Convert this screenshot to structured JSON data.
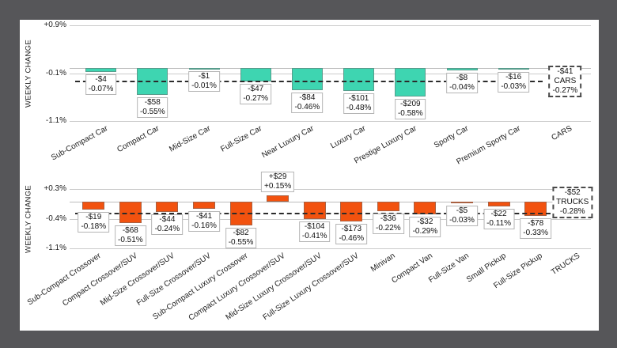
{
  "colors": {
    "frame_bg": "#565659",
    "panel_bg": "#ffffff",
    "cars_bar": "#3ED5B1",
    "trucks_bar": "#F2520F",
    "gridline": "#cbcbcb",
    "dashed_line": "#2b2b2b",
    "label_box_border": "#b5b5b5"
  },
  "chart_data": [
    {
      "id": "cars",
      "type": "bar",
      "title": "",
      "ylabel": "WEEKLY CHANGE",
      "bar_color": "#3ED5B1",
      "grid": true,
      "legend": "none",
      "ylim": [
        -1.1,
        0.9
      ],
      "yticks": [
        {
          "label": "+0.9%",
          "value": 0.9
        },
        {
          "label": "-0.1%",
          "value": -0.1
        },
        {
          "label": "-1.1%",
          "value": -1.1
        }
      ],
      "average_line": {
        "value": -0.27,
        "style": "dashed",
        "box_lines": [
          "-$41",
          "CARS",
          "-0.27%"
        ]
      },
      "summary_category": "CARS",
      "bars": [
        {
          "category": "Sub-Compact Car",
          "dollar": "-$4",
          "pct": "-0.07%",
          "value": -0.07
        },
        {
          "category": "Compact Car",
          "dollar": "-$58",
          "pct": "-0.55%",
          "value": -0.55
        },
        {
          "category": "Mid-Size Car",
          "dollar": "-$1",
          "pct": "-0.01%",
          "value": -0.01
        },
        {
          "category": "Full-Size Car",
          "dollar": "-$47",
          "pct": "-0.27%",
          "value": -0.27
        },
        {
          "category": "Near Luxury Car",
          "dollar": "-$84",
          "pct": "-0.46%",
          "value": -0.46
        },
        {
          "category": "Luxury Car",
          "dollar": "-$101",
          "pct": "-0.48%",
          "value": -0.48
        },
        {
          "category": "Prestige Luxury Car",
          "dollar": "-$209",
          "pct": "-0.58%",
          "value": -0.58
        },
        {
          "category": "Sporty Car",
          "dollar": "-$8",
          "pct": "-0.04%",
          "value": -0.04
        },
        {
          "category": "Premium Sporty Car",
          "dollar": "-$16",
          "pct": "-0.03%",
          "value": -0.03
        }
      ]
    },
    {
      "id": "trucks",
      "type": "bar",
      "title": "",
      "ylabel": "WEEKLY CHANGE",
      "bar_color": "#F2520F",
      "grid": true,
      "legend": "none",
      "ylim": [
        -1.1,
        0.3
      ],
      "yticks": [
        {
          "label": "+0.3%",
          "value": 0.3
        },
        {
          "label": "-0.4%",
          "value": -0.4
        },
        {
          "label": "-1.1%",
          "value": -1.1
        }
      ],
      "average_line": {
        "value": -0.28,
        "style": "dashed",
        "box_lines": [
          "-$52",
          "TRUCKS",
          "-0.28%"
        ]
      },
      "summary_category": "TRUCKS",
      "bars": [
        {
          "category": "Sub-Compact Crossover",
          "dollar": "-$19",
          "pct": "-0.18%",
          "value": -0.18
        },
        {
          "category": "Compact Crossover/SUV",
          "dollar": "-$68",
          "pct": "-0.51%",
          "value": -0.51
        },
        {
          "category": "Mid-Size Crossover/SUV",
          "dollar": "-$44",
          "pct": "-0.24%",
          "value": -0.24
        },
        {
          "category": "Full-Size Crossover/SUV",
          "dollar": "-$41",
          "pct": "-0.16%",
          "value": -0.16
        },
        {
          "category": "Sub-Compact Luxury Crossover",
          "dollar": "-$82",
          "pct": "-0.55%",
          "value": -0.55
        },
        {
          "category": "Compact Luxury Crossover/SUV",
          "dollar": "+$29",
          "pct": "+0.15%",
          "value": 0.15
        },
        {
          "category": "Mid-Size Luxury Crossover/SUV",
          "dollar": "-$104",
          "pct": "-0.41%",
          "value": -0.41
        },
        {
          "category": "Full-Size Luxury Crossover/SUV",
          "dollar": "-$173",
          "pct": "-0.46%",
          "value": -0.46
        },
        {
          "category": "Minivan",
          "dollar": "-$36",
          "pct": "-0.22%",
          "value": -0.22
        },
        {
          "category": "Compact Van",
          "dollar": "-$32",
          "pct": "-0.29%",
          "value": -0.29
        },
        {
          "category": "Full-Size Van",
          "dollar": "-$5",
          "pct": "-0.03%",
          "value": -0.03
        },
        {
          "category": "Small Pickup",
          "dollar": "-$22",
          "pct": "-0.11%",
          "value": -0.11
        },
        {
          "category": "Full-Size Pickup",
          "dollar": "-$78",
          "pct": "-0.33%",
          "value": -0.33
        }
      ]
    }
  ]
}
